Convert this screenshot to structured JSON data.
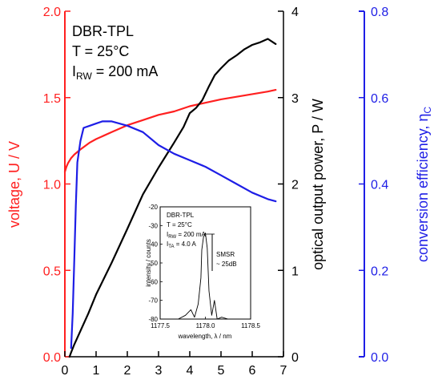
{
  "chart_data": [
    {
      "type": "line",
      "annotation": {
        "line1": "DBR-TPL",
        "line2": "T = 25°C",
        "line3_main": "I",
        "line3_sub": "RW",
        "line3_rest": " = 200 mA"
      },
      "x_axis": {
        "range": [
          0,
          7
        ],
        "ticks": [
          "0",
          "1",
          "2",
          "3",
          "4",
          "5",
          "6",
          "7"
        ]
      },
      "left_axis": {
        "label": "voltage, U / V",
        "range": [
          0.0,
          2.0
        ],
        "ticks": [
          "0.0",
          "0.5",
          "1.0",
          "1.5",
          "2.0"
        ],
        "color": "#ff2020"
      },
      "middle_axis": {
        "label": "optical output power, P / W",
        "range": [
          0,
          4
        ],
        "ticks": [
          "0",
          "1",
          "2",
          "3",
          "4"
        ],
        "color": "#000000"
      },
      "right_axis": {
        "label_main": "conversion efficiency, η",
        "label_sub": "C",
        "range": [
          0.0,
          0.8
        ],
        "ticks": [
          "0.0",
          "0.2",
          "0.4",
          "0.6",
          "0.8"
        ],
        "color": "#1e1ee6"
      },
      "series": [
        {
          "axis": "left",
          "color": "#ff2020",
          "x": [
            0.0,
            0.05,
            0.1,
            0.2,
            0.3,
            0.5,
            0.8,
            1.0,
            1.5,
            2.0,
            2.5,
            3.0,
            3.5,
            4.0,
            4.5,
            5.0,
            5.5,
            6.0,
            6.5,
            6.75
          ],
          "y": [
            1.07,
            1.1,
            1.12,
            1.15,
            1.17,
            1.2,
            1.24,
            1.26,
            1.3,
            1.34,
            1.37,
            1.4,
            1.42,
            1.45,
            1.47,
            1.49,
            1.505,
            1.52,
            1.535,
            1.545
          ]
        },
        {
          "axis": "middle",
          "color": "#000000",
          "x": [
            0.15,
            0.2,
            0.3,
            0.4,
            0.5,
            0.75,
            1.0,
            1.5,
            2.0,
            2.5,
            3.0,
            3.5,
            3.8,
            4.0,
            4.2,
            4.4,
            4.6,
            4.8,
            5.0,
            5.25,
            5.5,
            5.75,
            6.0,
            6.25,
            6.5,
            6.75
          ],
          "y": [
            0.0,
            0.05,
            0.14,
            0.22,
            0.3,
            0.5,
            0.72,
            1.09,
            1.48,
            1.88,
            2.19,
            2.48,
            2.66,
            2.82,
            2.88,
            2.97,
            3.12,
            3.26,
            3.34,
            3.43,
            3.49,
            3.56,
            3.61,
            3.64,
            3.68,
            3.62
          ]
        },
        {
          "axis": "right",
          "color": "#1e1ee6",
          "x": [
            0.2,
            0.25,
            0.3,
            0.35,
            0.4,
            0.5,
            0.6,
            0.8,
            1.0,
            1.2,
            1.5,
            2.0,
            2.5,
            3.0,
            3.5,
            4.0,
            4.5,
            5.0,
            5.5,
            6.0,
            6.5,
            6.75
          ],
          "y": [
            0.02,
            0.1,
            0.22,
            0.35,
            0.45,
            0.5,
            0.53,
            0.535,
            0.54,
            0.545,
            0.545,
            0.535,
            0.52,
            0.49,
            0.47,
            0.455,
            0.44,
            0.42,
            0.4,
            0.38,
            0.365,
            0.36
          ]
        }
      ]
    },
    {
      "type": "line",
      "annotation": {
        "line1": "DBR-TPL",
        "line2": "T = 25°C",
        "line3_main": "I",
        "line3_sub": "RW",
        "line3_rest": " = 200 mA",
        "line4_main": "I",
        "line4_sub": "TA",
        "line4_rest": " = 4.0 A"
      },
      "smsr_label": "SMSR",
      "smsr_value": "~ 25dB",
      "x_axis": {
        "label": "wavelength, λ / nm",
        "range": [
          1177.5,
          1178.5
        ],
        "ticks": [
          "1177.5",
          "1178.0",
          "1178.5"
        ]
      },
      "y_axis": {
        "label": "intensity / counts",
        "range": [
          -80,
          -20
        ],
        "ticks": [
          "-20",
          "-30",
          "-40",
          "-50",
          "-60",
          "-70",
          "-80"
        ]
      },
      "series": [
        {
          "x": [
            1177.55,
            1177.62,
            1177.7,
            1177.78,
            1177.84,
            1177.88,
            1177.92,
            1177.95,
            1177.96,
            1177.98,
            1178.0,
            1178.02,
            1178.04,
            1178.07,
            1178.1,
            1178.13,
            1178.18,
            1178.25,
            1178.35
          ],
          "y": [
            -80,
            -80,
            -80,
            -78,
            -75,
            -79,
            -72,
            -58,
            -43,
            -36,
            -34,
            -42,
            -65,
            -78,
            -70,
            -80,
            -79,
            -80,
            -80
          ]
        }
      ]
    }
  ]
}
